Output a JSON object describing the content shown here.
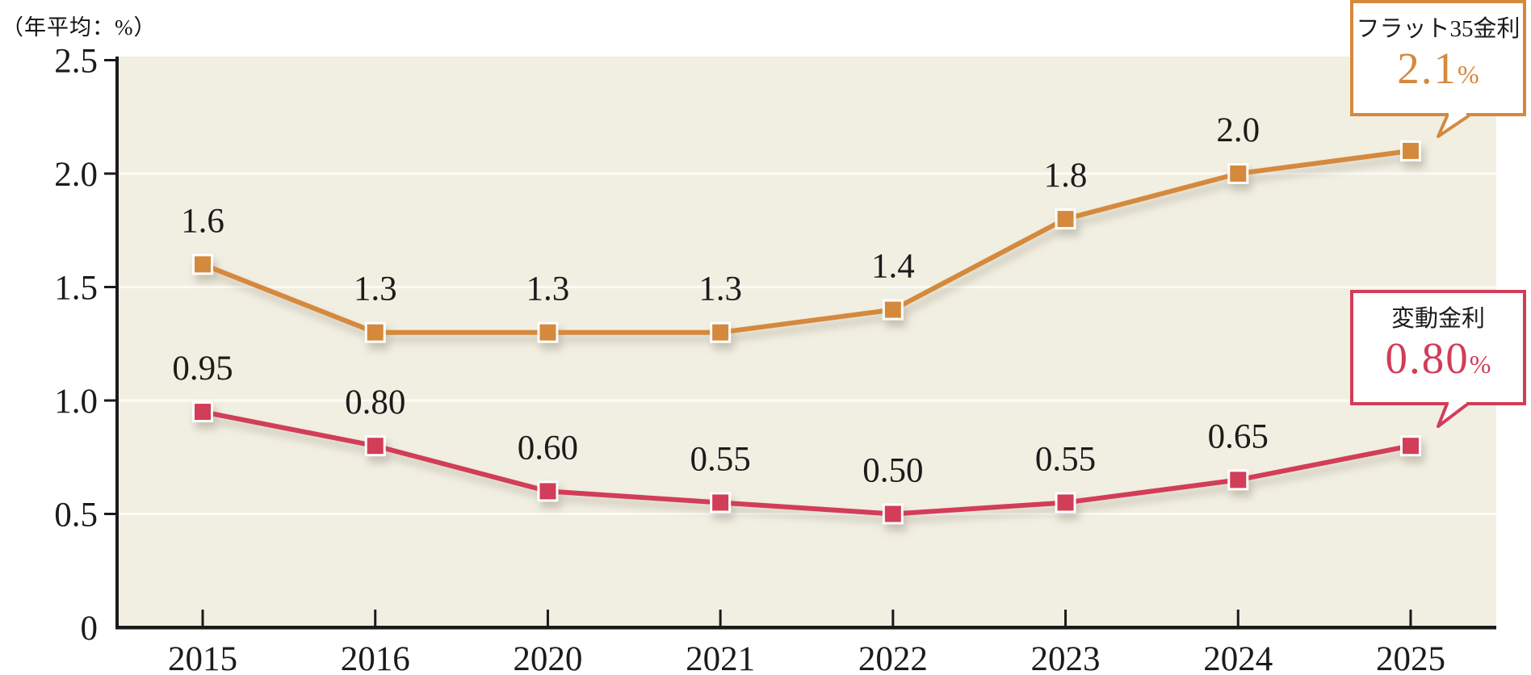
{
  "page": {
    "background": "#ffffff"
  },
  "y_axis_unit_label": "（年平均：%）",
  "chart_data": {
    "type": "line",
    "title": "",
    "categories": [
      "2015",
      "2016",
      "2020",
      "2021",
      "2022",
      "2023",
      "2024",
      "2025"
    ],
    "series": [
      {
        "name": "フラット35金利",
        "color": "#d5893d",
        "values": [
          1.6,
          1.3,
          1.3,
          1.3,
          1.4,
          1.8,
          2.0,
          2.1
        ],
        "point_labels": [
          "1.6",
          "1.3",
          "1.3",
          "1.3",
          "1.4",
          "1.8",
          "2.0",
          ""
        ]
      },
      {
        "name": "変動金利",
        "color": "#d23d58",
        "values": [
          0.95,
          0.8,
          0.6,
          0.55,
          0.5,
          0.55,
          0.65,
          0.8
        ],
        "point_labels": [
          "0.95",
          "0.80",
          "0.60",
          "0.55",
          "0.50",
          "0.55",
          "0.65",
          ""
        ]
      }
    ],
    "xlabel": "",
    "ylabel": "（年平均：%）",
    "ylim": [
      0,
      2.5
    ],
    "y_ticks": [
      0,
      0.5,
      1.0,
      1.5,
      2.0,
      2.5
    ],
    "y_tick_labels": [
      "0",
      "0.5",
      "1.0",
      "1.5",
      "2.0",
      "2.5"
    ],
    "grid": true,
    "legend_position": "none",
    "marker": "square",
    "plot_background": "#f1efe2",
    "gridline_color": "#fcfbf4",
    "axis_color": "#1a1a1a"
  },
  "callouts": [
    {
      "label": "フラット35金利",
      "value": "2.1",
      "unit": "%",
      "color": "#d5893d"
    },
    {
      "label": "変動金利",
      "value": "0.80",
      "unit": "%",
      "color": "#d23d58"
    }
  ]
}
